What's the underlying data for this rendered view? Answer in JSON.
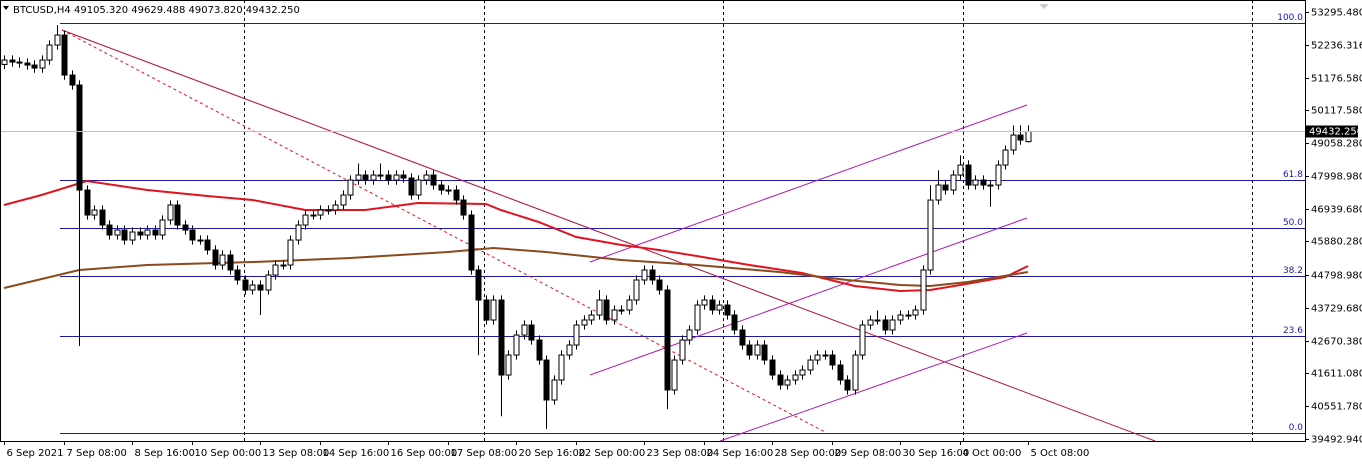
{
  "chart_data": {
    "type": "candlestick",
    "symbol": "BTCUSD,H4",
    "ohlc_text": [
      "49105.320",
      "49629.488",
      "49073.820",
      "49432.250"
    ],
    "categories": [
      "6 Sep 2021",
      null,
      null,
      null,
      null,
      null,
      null,
      null,
      "7 Sep 08:00",
      null,
      null,
      null,
      null,
      null,
      null,
      null,
      null,
      "8 Sep 16:00",
      null,
      null,
      null,
      null,
      null,
      null,
      null,
      "10 Sep 00:00",
      null,
      null,
      null,
      null,
      null,
      null,
      null,
      null,
      "13 Sep 08:00",
      null,
      null,
      null,
      null,
      null,
      null,
      null,
      "14 Sep 16:00",
      null,
      null,
      null,
      null,
      null,
      null,
      null,
      null,
      "16 Sep 00:00",
      null,
      null,
      null,
      null,
      null,
      null,
      null,
      "17 Sep 08:00",
      null,
      null,
      null,
      null,
      null,
      null,
      null,
      null,
      "20 Sep 16:00",
      null,
      null,
      null,
      null,
      null,
      null,
      null,
      "22 Sep 00:00",
      null,
      null,
      null,
      null,
      null,
      null,
      null,
      null,
      "23 Sep 08:00",
      null,
      null,
      null,
      null,
      null,
      null,
      null,
      "24 Sep 16:00",
      null,
      null,
      null,
      null,
      null,
      null,
      null,
      null,
      "28 Sep 00:00",
      null,
      null,
      null,
      null,
      null,
      null,
      null,
      "29 Sep 08:00",
      null,
      null,
      null,
      null,
      null,
      null,
      null,
      null,
      "30 Sep 16:00",
      null,
      null,
      null,
      null,
      null,
      null,
      null,
      "4 Oct 00:00",
      null,
      null,
      null,
      null,
      null,
      null,
      null,
      null,
      "5 Oct 08:00"
    ],
    "open": [
      51600,
      51742,
      51677,
      51645,
      51580,
      51483,
      51742,
      52227,
      52550,
      51257,
      50934,
      47540,
      46732,
      46894,
      46409,
      46086,
      46247,
      45924,
      46183,
      46086,
      46247,
      46086,
      46571,
      47056,
      46409,
      46247,
      45924,
      45924,
      45601,
      45116,
      45439,
      44955,
      44632,
      44308,
      44470,
      44308,
      44793,
      45116,
      45116,
      45924,
      46409,
      46732,
      46732,
      46894,
      46894,
      47056,
      47379,
      47863,
      48025,
      47863,
      48025,
      48025,
      47863,
      48025,
      47928,
      47379,
      47863,
      48025,
      47702,
      47540,
      47540,
      47217,
      46732,
      44955,
      43985,
      43339,
      43985,
      41561,
      42207,
      42853,
      43177,
      42692,
      42045,
      40753,
      41399,
      42207,
      42530,
      43177,
      43339,
      43500,
      43985,
      43339,
      43662,
      43662,
      43985,
      44632,
      44955,
      44632,
      44308,
      41077,
      42045,
      42692,
      43016,
      43823,
      43985,
      43662,
      43823,
      43500,
      43016,
      42530,
      42207,
      42530,
      42045,
      41561,
      41238,
      41399,
      41561,
      41723,
      42045,
      42207,
      42207,
      41884,
      41399,
      41077,
      42207,
      43177,
      43339,
      43339,
      43016,
      43339,
      43500,
      43500,
      43662,
      44955,
      47217,
      47702,
      47540,
      48025,
      48348,
      47702,
      47863,
      47702,
      47702,
      48348,
      48833,
      49318,
      49105.32
    ],
    "high": [
      51892,
      51892,
      51827,
      51795,
      51730,
      51892,
      52377,
      52870,
      52700,
      51407,
      51084,
      47690,
      47044,
      47044,
      46559,
      46397,
      46397,
      46333,
      46333,
      46397,
      46397,
      46721,
      47206,
      47206,
      46559,
      46397,
      46074,
      46074,
      45751,
      45589,
      45589,
      45105,
      44782,
      44620,
      44620,
      44943,
      45266,
      45266,
      46074,
      46559,
      46882,
      46882,
      47044,
      47044,
      47206,
      47529,
      48013,
      48400,
      48175,
      48175,
      48400,
      48175,
      48175,
      48175,
      48078,
      48013,
      48175,
      48175,
      47852,
      47690,
      47690,
      47367,
      46882,
      45105,
      44135,
      44135,
      44135,
      42357,
      43003,
      43327,
      43327,
      42842,
      42195,
      41549,
      42357,
      42680,
      43327,
      43489,
      43650,
      44308,
      44135,
      43812,
      43812,
      44135,
      44782,
      45105,
      45105,
      44782,
      44458,
      42195,
      42842,
      43166,
      43973,
      44135,
      44135,
      43973,
      43973,
      43650,
      43166,
      42680,
      42680,
      42680,
      42195,
      41711,
      41549,
      41711,
      41873,
      42195,
      42357,
      42357,
      42357,
      42034,
      41549,
      42357,
      43327,
      43489,
      43650,
      43489,
      43489,
      43650,
      43650,
      43812,
      45105,
      47700,
      48175,
      47852,
      48175,
      48660,
      48498,
      48013,
      48013,
      47852,
      48498,
      48983,
      49630,
      49630,
      49629.488
    ],
    "low": [
      51450,
      51527,
      51495,
      51430,
      51333,
      51333,
      51592,
      52077,
      51107,
      50784,
      42500,
      46582,
      46582,
      46259,
      45936,
      45936,
      45774,
      45774,
      45936,
      45936,
      45936,
      45936,
      46421,
      46259,
      46097,
      45774,
      45774,
      45451,
      44966,
      44966,
      44805,
      44482,
      44158,
      44158,
      43500,
      44158,
      44643,
      44966,
      44966,
      45774,
      46259,
      46582,
      46582,
      46744,
      46744,
      46906,
      47229,
      47713,
      47713,
      47713,
      47875,
      47713,
      47713,
      47778,
      47229,
      47229,
      47713,
      47552,
      47390,
      47390,
      47067,
      46582,
      44805,
      42200,
      43189,
      43189,
      40230,
      41411,
      42057,
      42703,
      42542,
      41895,
      39820,
      40603,
      41249,
      42057,
      42380,
      43027,
      43189,
      43350,
      43189,
      43189,
      43512,
      43512,
      43835,
      44482,
      44482,
      44158,
      40460,
      40927,
      41895,
      42542,
      42866,
      43673,
      43512,
      43512,
      43350,
      42866,
      42380,
      42057,
      42057,
      41895,
      41411,
      41088,
      41088,
      41249,
      41411,
      41573,
      41895,
      42057,
      41734,
      41249,
      40927,
      40927,
      42057,
      43027,
      43189,
      42866,
      42866,
      43189,
      43350,
      43350,
      43512,
      44805,
      47067,
      47390,
      47390,
      47875,
      47552,
      47552,
      47552,
      47000,
      47552,
      48198,
      48683,
      49006,
      49073.82
    ],
    "close": [
      51742,
      51677,
      51645,
      51580,
      51483,
      51742,
      52227,
      52550,
      51257,
      50934,
      47540,
      46732,
      46894,
      46409,
      46086,
      46247,
      45924,
      46183,
      46086,
      46247,
      46086,
      46571,
      47056,
      46409,
      46247,
      45924,
      45924,
      45601,
      45116,
      45439,
      44955,
      44632,
      44308,
      44470,
      44308,
      44793,
      45116,
      45116,
      45924,
      46409,
      46732,
      46732,
      46894,
      46894,
      47056,
      47379,
      47863,
      48025,
      47863,
      48025,
      48025,
      47863,
      48025,
      47928,
      47379,
      47863,
      48025,
      47702,
      47540,
      47540,
      47217,
      46732,
      44955,
      43985,
      43339,
      43985,
      41561,
      42207,
      42853,
      43177,
      42692,
      42045,
      40753,
      41399,
      42207,
      42530,
      43177,
      43339,
      43500,
      43985,
      43339,
      43662,
      43662,
      43985,
      44632,
      44955,
      44632,
      44308,
      41077,
      42045,
      42692,
      43016,
      43823,
      43985,
      43662,
      43823,
      43500,
      43016,
      42530,
      42207,
      42530,
      42045,
      41561,
      41238,
      41399,
      41561,
      41723,
      42045,
      42207,
      42207,
      41884,
      41399,
      41077,
      42207,
      43177,
      43339,
      43339,
      43016,
      43339,
      43500,
      43500,
      43662,
      44955,
      47217,
      47702,
      47540,
      48025,
      48348,
      47702,
      47863,
      47702,
      47702,
      48348,
      48833,
      49318,
      49156,
      49432.25
    ],
    "up_color": "#ffffff",
    "down_color": "#000000",
    "moving_averages": [
      {
        "color": "#e0141e",
        "x": [
          0,
          5,
          11,
          19,
          27,
          33,
          40,
          48,
          55,
          64,
          66,
          71,
          76,
          82,
          87,
          92,
          99,
          106,
          113,
          119,
          123,
          127,
          133,
          136
        ],
        "values": [
          47055,
          47379,
          47831,
          47540,
          47347,
          47217,
          46894,
          46894,
          47120,
          47088,
          46894,
          46506,
          46021,
          45763,
          45601,
          45407,
          45116,
          44858,
          44438,
          44276,
          44308,
          44470,
          44729,
          45084
        ]
      },
      {
        "color": "#8b4a1c",
        "x": [
          0,
          10,
          19,
          33,
          46,
          59,
          65,
          72,
          82,
          92,
          103,
          112,
          119,
          123,
          128,
          132,
          136
        ],
        "values": [
          44373,
          44955,
          45116,
          45213,
          45343,
          45537,
          45666,
          45537,
          45278,
          45116,
          44890,
          44632,
          44470,
          44438,
          44567,
          44729,
          44890
        ]
      }
    ],
    "ylim": [
      39428,
      53683
    ],
    "yticks": [
      {
        "value": 53295.48,
        "label": "53295.480"
      },
      {
        "value": 52236.316,
        "label": "52236.316"
      },
      {
        "value": 51176.58,
        "label": "51176.580"
      },
      {
        "value": 50117.58,
        "label": "50117.580"
      },
      {
        "value": 49058.28,
        "label": "49058.280"
      },
      {
        "value": 47998.98,
        "label": "47998.980"
      },
      {
        "value": 46939.68,
        "label": "46939.680"
      },
      {
        "value": 45880.28,
        "label": "45880.280"
      },
      {
        "value": 44798.98,
        "label": "44798.980"
      },
      {
        "value": 43729.68,
        "label": "43729.680"
      },
      {
        "value": 42670.38,
        "label": "42670.380"
      },
      {
        "value": 41611.08,
        "label": "41611.080"
      },
      {
        "value": 40551.78,
        "label": "40551.780"
      },
      {
        "value": 39492.94,
        "label": "39492.940"
      }
    ],
    "last_price": {
      "value": 49432.25,
      "label": "49432.250"
    },
    "fib_levels": [
      {
        "label": "100.0",
        "price": 52940
      },
      {
        "label": "61.8",
        "price": 47864
      },
      {
        "label": "50.0",
        "price": 46313
      },
      {
        "label": "38.2",
        "price": 44761
      },
      {
        "label": "23.6",
        "price": 42822
      },
      {
        "label": "0.0",
        "price": 39687
      }
    ],
    "fib_color": "#1a1aa6"
  }
}
